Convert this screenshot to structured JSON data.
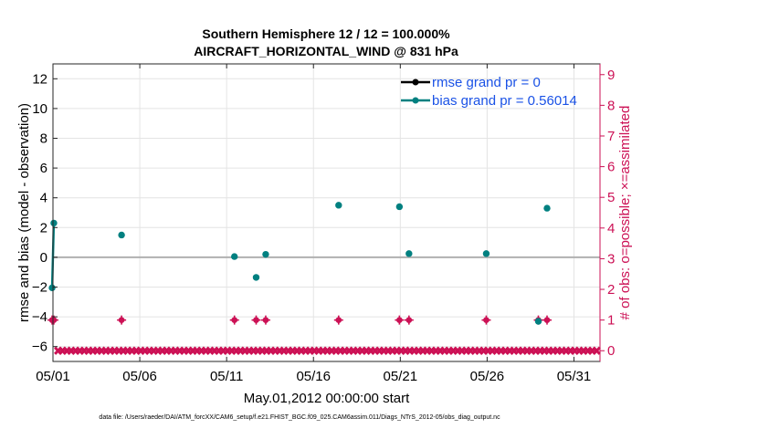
{
  "chart_data": {
    "type": "scatter",
    "title_line1": "Southern Hemisphere 12 / 12 = 100.000%",
    "title_line2": "AIRCRAFT_HORIZONTAL_WIND @ 831 hPa",
    "xlabel": "May.01,2012 00:00:00 start",
    "ylabel": "rmse and bias (model - observation)",
    "y2label": "# of obs: o=possible; ×=assimilated",
    "xlim": [
      0,
      31.5
    ],
    "ylim": [
      -7,
      13
    ],
    "y2lim": [
      -0.35,
      9.35
    ],
    "x_ticks": [
      {
        "value": 0,
        "label": "05/01"
      },
      {
        "value": 5,
        "label": "05/06"
      },
      {
        "value": 10,
        "label": "05/11"
      },
      {
        "value": 15,
        "label": "05/16"
      },
      {
        "value": 20,
        "label": "05/21"
      },
      {
        "value": 25,
        "label": "05/26"
      },
      {
        "value": 30,
        "label": "05/31"
      }
    ],
    "y_ticks": [
      -6,
      -4,
      -2,
      0,
      2,
      4,
      6,
      8,
      10,
      12
    ],
    "y2_ticks": [
      0,
      1,
      2,
      3,
      4,
      5,
      6,
      7,
      8,
      9
    ],
    "grid": true,
    "legend_position": "top-right",
    "series": [
      {
        "name": "rmse grand pr = 0",
        "color": "#000000",
        "x": [],
        "y": []
      },
      {
        "name": "bias grand pr = 0.56014",
        "color": "#008080",
        "line_x": [
          -0.05,
          0.05
        ],
        "line_y": [
          -2.05,
          2.3
        ],
        "x": [
          -0.05,
          0.05,
          3.95,
          10.45,
          11.7,
          12.25,
          16.45,
          19.95,
          20.5,
          24.95,
          27.95,
          28.45
        ],
        "y": [
          -2.05,
          2.3,
          1.5,
          0.05,
          -1.35,
          0.2,
          3.5,
          3.4,
          0.25,
          0.25,
          -4.3,
          3.3
        ]
      }
    ],
    "obs_possible": {
      "color": "#cc1155",
      "x": [
        -0.05,
        0.05,
        3.95,
        10.45,
        11.7,
        12.25,
        16.45,
        19.95,
        20.5,
        24.95,
        27.95,
        28.45
      ],
      "y": [
        1,
        1,
        1,
        1,
        1,
        1,
        1,
        1,
        1,
        1,
        1,
        1
      ]
    },
    "obs_assimilated": {
      "color": "#cc1155",
      "x_start": 0.3,
      "x_end": 31.45,
      "step": 0.25,
      "y": 0
    },
    "zero_line": 0,
    "footnote": "data file: /Users/raeder/DAI/ATM_forcXX/CAM6_setup/f.e21.FHIST_BGC.f09_025.CAM6assim.011/Diags_NTrS_2012-05/obs_diag_output.nc"
  }
}
